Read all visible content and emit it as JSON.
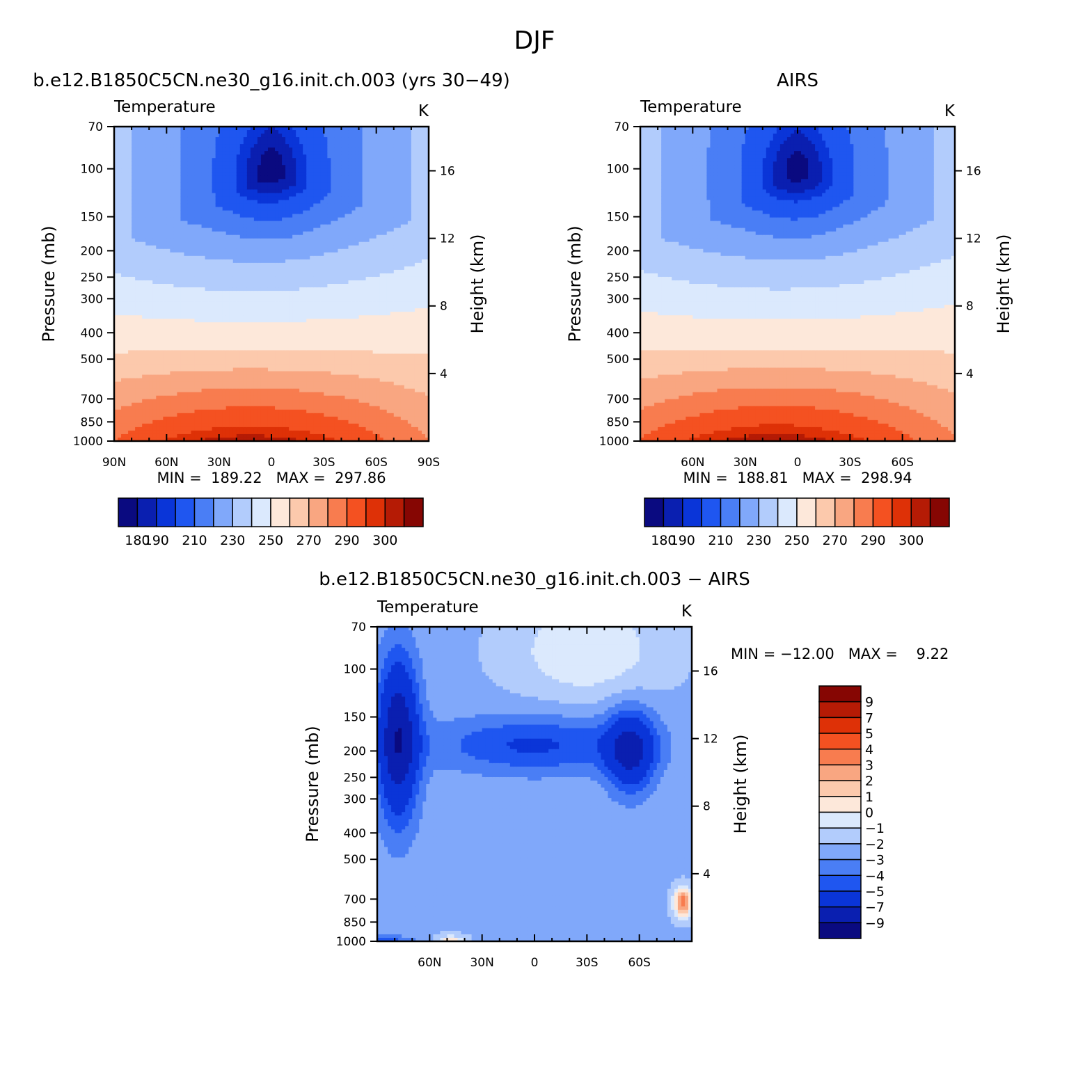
{
  "page_title": "DJF",
  "palette_temp": [
    "#0a0a80",
    "#0a1fb0",
    "#0a35d8",
    "#1f56f0",
    "#4a7ef5",
    "#80a8fa",
    "#b2ccfc",
    "#dbe9fd",
    "#fde8da",
    "#fcc9ac",
    "#f9a681",
    "#f87c4f",
    "#f45121",
    "#de3107",
    "#b51b05",
    "#860603"
  ],
  "palette_diff": [
    "#0a0a80",
    "#0a1fb0",
    "#0a35d8",
    "#1f56f0",
    "#4a7ef5",
    "#80a8fa",
    "#b2ccfc",
    "#dbe9fd",
    "#fde8da",
    "#fcc9ac",
    "#f9a681",
    "#f87c4f",
    "#f45121",
    "#de3107",
    "#b51b05",
    "#860603"
  ],
  "chart_data": [
    {
      "type": "heatmap",
      "title": "b.e12.B1850C5CN.ne30_g16.init.ch.003 (yrs 30−49)",
      "subtitle_left": "Temperature",
      "subtitle_right": "K",
      "ylabel": "Pressure (mb)",
      "ylabel_right": "Height (km)",
      "yticks": [
        "70",
        "100",
        "150",
        "200",
        "250",
        "300",
        "400",
        "500",
        "700",
        "850",
        "1000"
      ],
      "ytick_values": [
        70,
        100,
        150,
        200,
        250,
        300,
        400,
        500,
        700,
        850,
        1000
      ],
      "yticks_right": [
        "16",
        "12",
        "8",
        "4"
      ],
      "xticks": [
        "90N",
        "60N",
        "30N",
        "0",
        "30S",
        "60S",
        "90S"
      ],
      "xtick_values": [
        90,
        60,
        30,
        0,
        -30,
        -60,
        -90
      ],
      "xlim": [
        90,
        -90
      ],
      "ylim": [
        70,
        1000
      ],
      "y_scale": "log",
      "min": "189.22",
      "max": "297.86",
      "stats_text": "MIN =  189.22   MAX =  297.86",
      "colorbar_labels": [
        "180",
        "190",
        "210",
        "230",
        "250",
        "270",
        "290",
        "300"
      ],
      "field": "model"
    },
    {
      "type": "heatmap",
      "title": "AIRS",
      "subtitle_left": "Temperature",
      "subtitle_right": "K",
      "ylabel": "Pressure (mb)",
      "ylabel_right": "Height (km)",
      "yticks": [
        "70",
        "100",
        "150",
        "200",
        "250",
        "300",
        "400",
        "500",
        "700",
        "850",
        "1000"
      ],
      "ytick_values": [
        70,
        100,
        150,
        200,
        250,
        300,
        400,
        500,
        700,
        850,
        1000
      ],
      "yticks_right": [
        "16",
        "12",
        "8",
        "4"
      ],
      "xticks": [
        "60N",
        "30N",
        "0",
        "30S",
        "60S"
      ],
      "xtick_values": [
        60,
        30,
        0,
        -30,
        -60
      ],
      "xlim": [
        90,
        -90
      ],
      "ylim": [
        70,
        1000
      ],
      "y_scale": "log",
      "min": "188.81",
      "max": "298.94",
      "stats_text": "MIN =  188.81   MAX =  298.94",
      "colorbar_labels": [
        "180",
        "190",
        "210",
        "230",
        "250",
        "270",
        "290",
        "300"
      ],
      "field": "obs"
    },
    {
      "type": "heatmap",
      "title": "b.e12.B1850C5CN.ne30_g16.init.ch.003 − AIRS",
      "subtitle_left": "Temperature",
      "subtitle_right": "K",
      "ylabel": "Pressure (mb)",
      "ylabel_right": "Height (km)",
      "yticks": [
        "70",
        "100",
        "150",
        "200",
        "250",
        "300",
        "400",
        "500",
        "700",
        "850",
        "1000"
      ],
      "ytick_values": [
        70,
        100,
        150,
        200,
        250,
        300,
        400,
        500,
        700,
        850,
        1000
      ],
      "yticks_right": [
        "16",
        "12",
        "8",
        "4"
      ],
      "xticks": [
        "60N",
        "30N",
        "0",
        "30S",
        "60S"
      ],
      "xtick_values": [
        60,
        30,
        0,
        -30,
        -60
      ],
      "xlim": [
        90,
        -90
      ],
      "ylim": [
        70,
        1000
      ],
      "y_scale": "log",
      "min": "−12.00",
      "max": "9.22",
      "stats_text": "MIN = −12.00   MAX =    9.22",
      "colorbar_labels": [
        "9",
        "7",
        "5",
        "4",
        "3",
        "2",
        "1",
        "0",
        "−1",
        "−2",
        "−3",
        "−4",
        "−5",
        "−7",
        "−9"
      ],
      "field": "diff"
    }
  ]
}
